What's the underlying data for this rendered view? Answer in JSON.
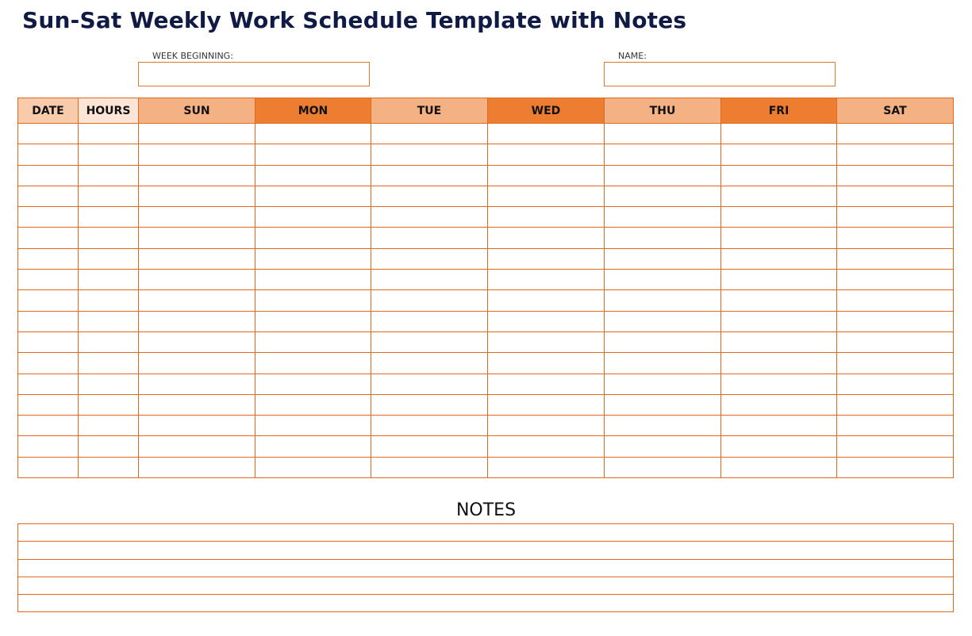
{
  "title": "Sun-Sat Weekly Work Schedule Template with Notes",
  "fields": {
    "week_beginning_label": "WEEK BEGINNING:",
    "week_beginning_value": "",
    "name_label": "NAME:",
    "name_value": ""
  },
  "schedule": {
    "columns": [
      {
        "label": "DATE",
        "color": "#F8CBAD"
      },
      {
        "label": "HOURS",
        "color": "#FCE4D6"
      },
      {
        "label": "SUN",
        "color": "#F4B183"
      },
      {
        "label": "MON",
        "color": "#ED7D31"
      },
      {
        "label": "TUE",
        "color": "#F4B183"
      },
      {
        "label": "WED",
        "color": "#ED7D31"
      },
      {
        "label": "THU",
        "color": "#F4B183"
      },
      {
        "label": "FRI",
        "color": "#ED7D31"
      },
      {
        "label": "SAT",
        "color": "#F4B183"
      }
    ]
  },
  "notes": {
    "title": "NOTES"
  },
  "colors": {
    "border": "#E06A1C",
    "title": "#0F1A45"
  }
}
